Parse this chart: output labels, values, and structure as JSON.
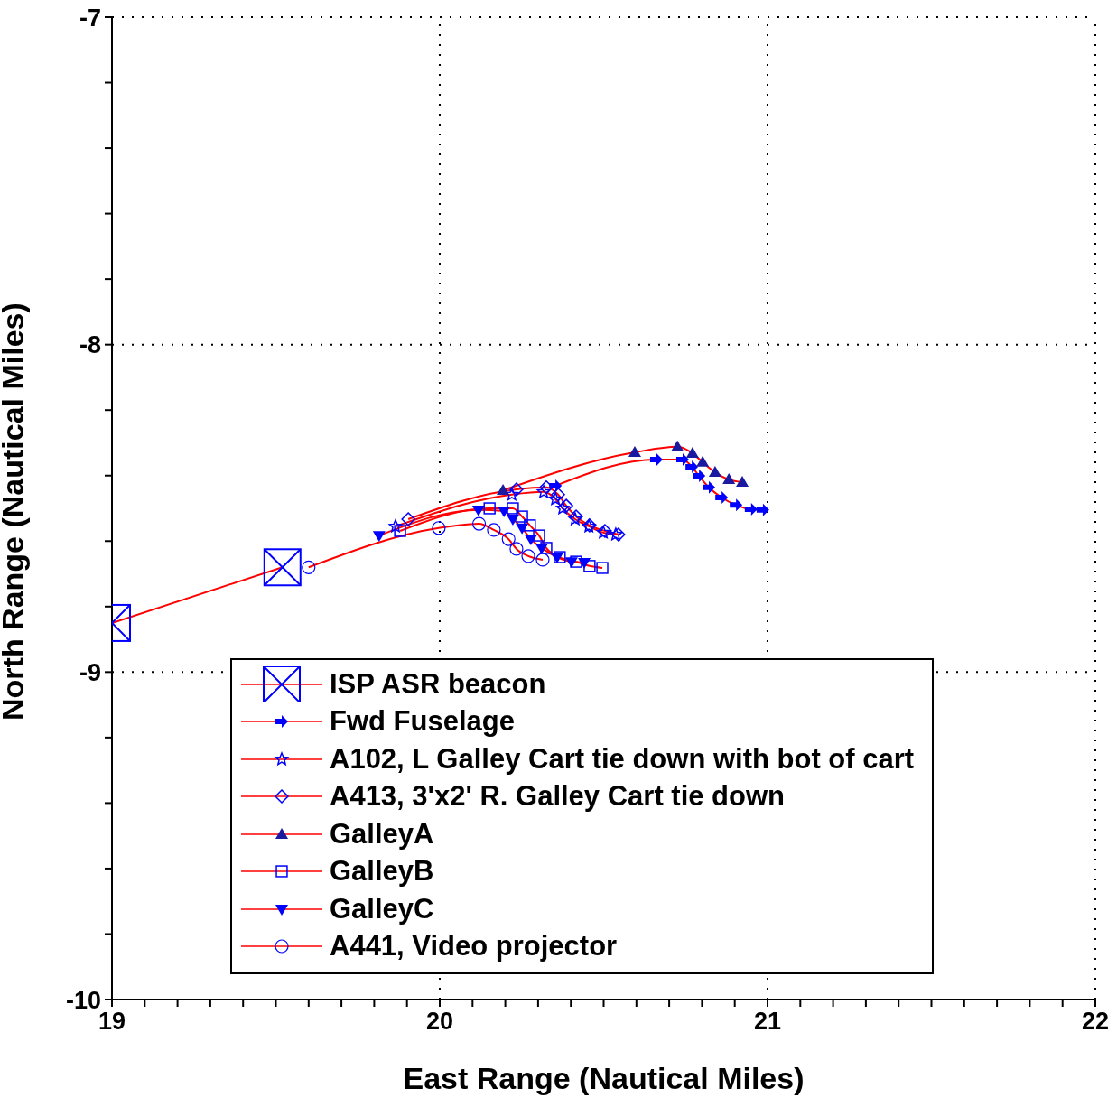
{
  "chart_data": {
    "type": "line",
    "xlabel": "East Range (Nautical Miles)",
    "ylabel": "North Range (Nautical Miles)",
    "xlim": [
      19,
      22
    ],
    "ylim": [
      -10,
      -7
    ],
    "xticks": [
      19,
      {
        "value": 19.1,
        "label": null
      },
      {
        "value": 19.2,
        "label": null
      },
      {
        "value": 19.3,
        "label": null
      },
      {
        "value": 19.4,
        "label": null
      },
      {
        "value": 19.5,
        "label": null
      },
      {
        "value": 19.6,
        "label": null
      },
      {
        "value": 19.7,
        "label": null
      },
      {
        "value": 19.8,
        "label": null
      },
      {
        "value": 19.9,
        "label": null
      },
      20,
      {
        "value": 20.1,
        "label": null
      },
      {
        "value": 20.2,
        "label": null
      },
      {
        "value": 20.3,
        "label": null
      },
      {
        "value": 20.4,
        "label": null
      },
      {
        "value": 20.5,
        "label": null
      },
      {
        "value": 20.6,
        "label": null
      },
      {
        "value": 20.7,
        "label": null
      },
      {
        "value": 20.8,
        "label": null
      },
      {
        "value": 20.9,
        "label": null
      },
      21,
      {
        "value": 21.1,
        "label": null
      },
      {
        "value": 21.2,
        "label": null
      },
      {
        "value": 21.3,
        "label": null
      },
      {
        "value": 21.4,
        "label": null
      },
      {
        "value": 21.5,
        "label": null
      },
      {
        "value": 21.6,
        "label": null
      },
      {
        "value": 21.7,
        "label": null
      },
      {
        "value": 21.8,
        "label": null
      },
      {
        "value": 21.9,
        "label": null
      },
      22
    ],
    "yticks": [
      -10,
      {
        "value": -9.8,
        "label": null
      },
      {
        "value": -9.6,
        "label": null
      },
      {
        "value": -9.4,
        "label": null
      },
      {
        "value": -9.2,
        "label": null
      },
      -9,
      {
        "value": -8.8,
        "label": null
      },
      {
        "value": -8.6,
        "label": null
      },
      {
        "value": -8.4,
        "label": null
      },
      {
        "value": -8.2,
        "label": null
      },
      -8,
      {
        "value": -7.8,
        "label": null
      },
      {
        "value": -7.6,
        "label": null
      },
      {
        "value": -7.4,
        "label": null
      },
      {
        "value": -7.2,
        "label": null
      },
      -7
    ],
    "grid": true,
    "legend": "bottom",
    "line_style": "solid",
    "series": [
      {
        "name": "ISP ASR beacon",
        "color": "#ff0000",
        "marker": "square",
        "x": [
          19,
          19.52
        ],
        "values": [
          -8.85,
          -8.68
        ]
      },
      {
        "name": "Fwd Fuselage",
        "color": "#ff0000",
        "marker": "triangle-right",
        "x": [
          20.353,
          20.661,
          20.741,
          20.769,
          20.791,
          20.821,
          20.86,
          20.904,
          20.95,
          20.986
        ],
        "values": [
          -8.431,
          -8.351,
          -8.351,
          -8.373,
          -8.401,
          -8.436,
          -8.467,
          -8.49,
          -8.503,
          -8.505
        ]
      },
      {
        "name": "A102, L Galley Cart tie down with bot of cart",
        "color": "#ff0000",
        "marker": "star",
        "x": [
          19.865,
          20.22,
          20.317,
          20.353,
          20.375,
          20.413,
          20.455,
          20.499,
          20.537
        ],
        "values": [
          -8.555,
          -8.458,
          -8.45,
          -8.472,
          -8.5,
          -8.533,
          -8.555,
          -8.574,
          -8.58
        ]
      },
      {
        "name": "A413, 3'x2' R. Galley Cart tie down",
        "color": "#ff0000",
        "marker": "diamond",
        "x": [
          19.904,
          20.234,
          20.325,
          20.361,
          20.386,
          20.416,
          20.457,
          20.504,
          20.545
        ],
        "values": [
          -8.533,
          -8.442,
          -8.436,
          -8.458,
          -8.492,
          -8.525,
          -8.552,
          -8.569,
          -8.58
        ]
      },
      {
        "name": "GalleyA",
        "color": "#ff0000",
        "marker": "triangle",
        "x": [
          20.193,
          20.595,
          20.725,
          20.771,
          20.802,
          20.84,
          20.882,
          20.923
        ],
        "values": [
          -8.445,
          -8.329,
          -8.312,
          -8.332,
          -8.359,
          -8.39,
          -8.412,
          -8.42
        ]
      },
      {
        "name": "GalleyB",
        "color": "#ff0000",
        "marker": "square",
        "x": [
          19.879,
          20.152,
          20.223,
          20.251,
          20.275,
          20.303,
          20.325,
          20.366,
          20.416,
          20.457,
          20.496
        ],
        "values": [
          -8.569,
          -8.5,
          -8.5,
          -8.525,
          -8.552,
          -8.583,
          -8.621,
          -8.649,
          -8.663,
          -8.676,
          -8.682
        ]
      },
      {
        "name": "GalleyC",
        "color": "#ff0000",
        "marker": "triangle-down",
        "x": [
          19.815,
          20.118,
          20.196,
          20.223,
          20.251,
          20.278,
          20.311,
          20.358,
          20.402,
          20.441
        ],
        "values": [
          -8.583,
          -8.505,
          -8.508,
          -8.533,
          -8.56,
          -8.594,
          -8.621,
          -8.649,
          -8.663,
          -8.665
        ]
      },
      {
        "name": "A441, Video projector",
        "color": "#ff0000",
        "marker": "circle",
        "x": [
          19.6,
          19.997,
          20.12,
          20.165,
          20.21,
          20.234,
          20.27,
          20.314
        ],
        "values": [
          -8.68,
          -8.56,
          -8.547,
          -8.566,
          -8.594,
          -8.624,
          -8.646,
          -8.657
        ]
      }
    ]
  }
}
